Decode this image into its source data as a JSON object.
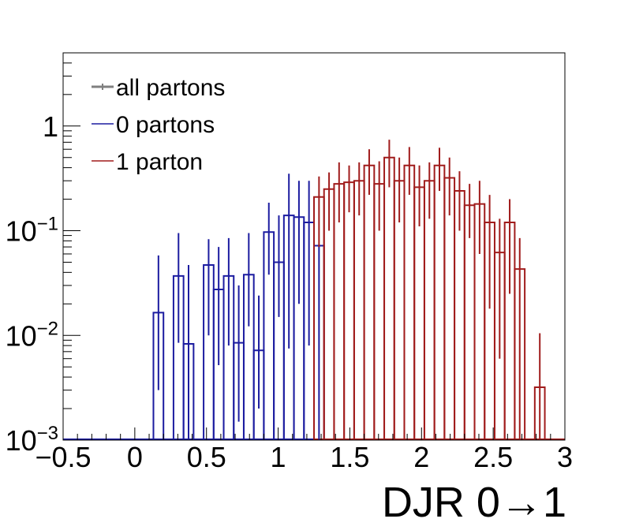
{
  "chart_data": {
    "type": "histogram",
    "title": "",
    "xlabel": "DJR 0→1",
    "ylabel": "",
    "xlim": [
      -0.5,
      3.0
    ],
    "ylim": [
      0.001,
      5
    ],
    "y_scale": "log",
    "grid": false,
    "legend_position": "top-left",
    "bin_width": 0.07,
    "x_ticks": [
      {
        "value": -0.5,
        "label": "−0.5"
      },
      {
        "value": 0,
        "label": "0"
      },
      {
        "value": 0.5,
        "label": "0.5"
      },
      {
        "value": 1,
        "label": "1"
      },
      {
        "value": 1.5,
        "label": "1.5"
      },
      {
        "value": 2,
        "label": "2"
      },
      {
        "value": 2.5,
        "label": "2.5"
      },
      {
        "value": 3,
        "label": "3"
      }
    ],
    "y_ticks": [
      {
        "value": 1,
        "base": "1",
        "exp": ""
      },
      {
        "value": 0.1,
        "base": "10",
        "exp": "−1"
      },
      {
        "value": 0.01,
        "base": "10",
        "exp": "−2"
      },
      {
        "value": 0.001,
        "base": "10",
        "exp": "−3"
      }
    ],
    "series": [
      {
        "name": "0 partons",
        "color": "#1c1ca0",
        "bins": [
          {
            "x0": 0.13,
            "value": 0.0165,
            "lo": 0.003,
            "hi": 0.058
          },
          {
            "x0": 0.27,
            "value": 0.037,
            "lo": 0.0085,
            "hi": 0.095
          },
          {
            "x0": 0.34,
            "value": 0.0083,
            "lo": 0.001,
            "hi": 0.047
          },
          {
            "x0": 0.48,
            "value": 0.047,
            "lo": 0.01,
            "hi": 0.083
          },
          {
            "x0": 0.55,
            "value": 0.0275,
            "lo": 0.0052,
            "hi": 0.07
          },
          {
            "x0": 0.62,
            "value": 0.037,
            "lo": 0.008,
            "hi": 0.085
          },
          {
            "x0": 0.69,
            "value": 0.0085,
            "lo": 0.0015,
            "hi": 0.03
          },
          {
            "x0": 0.76,
            "value": 0.038,
            "lo": 0.0122,
            "hi": 0.095
          },
          {
            "x0": 0.83,
            "value": 0.0072,
            "lo": 0.002,
            "hi": 0.024
          },
          {
            "x0": 0.9,
            "value": 0.097,
            "lo": 0.038,
            "hi": 0.185
          },
          {
            "x0": 0.97,
            "value": 0.05,
            "lo": 0.015,
            "hi": 0.14
          },
          {
            "x0": 1.04,
            "value": 0.14,
            "lo": 0.0075,
            "hi": 0.35
          },
          {
            "x0": 1.11,
            "value": 0.135,
            "lo": 0.02,
            "hi": 0.3
          },
          {
            "x0": 1.18,
            "value": 0.12,
            "lo": 0.008,
            "hi": 0.3
          },
          {
            "x0": 1.25,
            "value": 0.072,
            "lo": 0.001,
            "hi": 0.072
          }
        ]
      },
      {
        "name": "1 parton",
        "color": "#a01c1c",
        "bins": [
          {
            "x0": 1.25,
            "value": 0.21,
            "lo": 0.07,
            "hi": 0.33
          },
          {
            "x0": 1.32,
            "value": 0.25,
            "lo": 0.1,
            "hi": 0.36
          },
          {
            "x0": 1.39,
            "value": 0.28,
            "lo": 0.12,
            "hi": 0.45
          },
          {
            "x0": 1.46,
            "value": 0.29,
            "lo": 0.15,
            "hi": 0.42
          },
          {
            "x0": 1.53,
            "value": 0.3,
            "lo": 0.14,
            "hi": 0.45
          },
          {
            "x0": 1.6,
            "value": 0.42,
            "lo": 0.22,
            "hi": 0.6
          },
          {
            "x0": 1.67,
            "value": 0.28,
            "lo": 0.1,
            "hi": 0.46
          },
          {
            "x0": 1.74,
            "value": 0.5,
            "lo": 0.26,
            "hi": 0.74
          },
          {
            "x0": 1.81,
            "value": 0.3,
            "lo": 0.12,
            "hi": 0.5
          },
          {
            "x0": 1.88,
            "value": 0.42,
            "lo": 0.22,
            "hi": 0.63
          },
          {
            "x0": 1.95,
            "value": 0.26,
            "lo": 0.11,
            "hi": 0.42
          },
          {
            "x0": 2.02,
            "value": 0.3,
            "lo": 0.13,
            "hi": 0.45
          },
          {
            "x0": 2.09,
            "value": 0.42,
            "lo": 0.24,
            "hi": 0.62
          },
          {
            "x0": 2.16,
            "value": 0.32,
            "lo": 0.14,
            "hi": 0.5
          },
          {
            "x0": 2.23,
            "value": 0.24,
            "lo": 0.1,
            "hi": 0.37
          },
          {
            "x0": 2.3,
            "value": 0.175,
            "lo": 0.085,
            "hi": 0.28
          },
          {
            "x0": 2.37,
            "value": 0.18,
            "lo": 0.06,
            "hi": 0.3
          },
          {
            "x0": 2.44,
            "value": 0.12,
            "lo": 0.018,
            "hi": 0.22
          },
          {
            "x0": 2.51,
            "value": 0.062,
            "lo": 0.006,
            "hi": 0.13
          },
          {
            "x0": 2.58,
            "value": 0.12,
            "lo": 0.025,
            "hi": 0.2
          },
          {
            "x0": 2.65,
            "value": 0.043,
            "lo": 0.001,
            "hi": 0.085
          },
          {
            "x0": 2.79,
            "value": 0.0032,
            "lo": 0.001,
            "hi": 0.0105
          }
        ]
      }
    ],
    "legend": [
      {
        "label": "all partons",
        "color": "#808080",
        "marker": "cross"
      },
      {
        "label": "0 partons",
        "color": "#1c1ca0",
        "marker": "line"
      },
      {
        "label": "1 parton",
        "color": "#a01c1c",
        "marker": "line"
      }
    ]
  }
}
